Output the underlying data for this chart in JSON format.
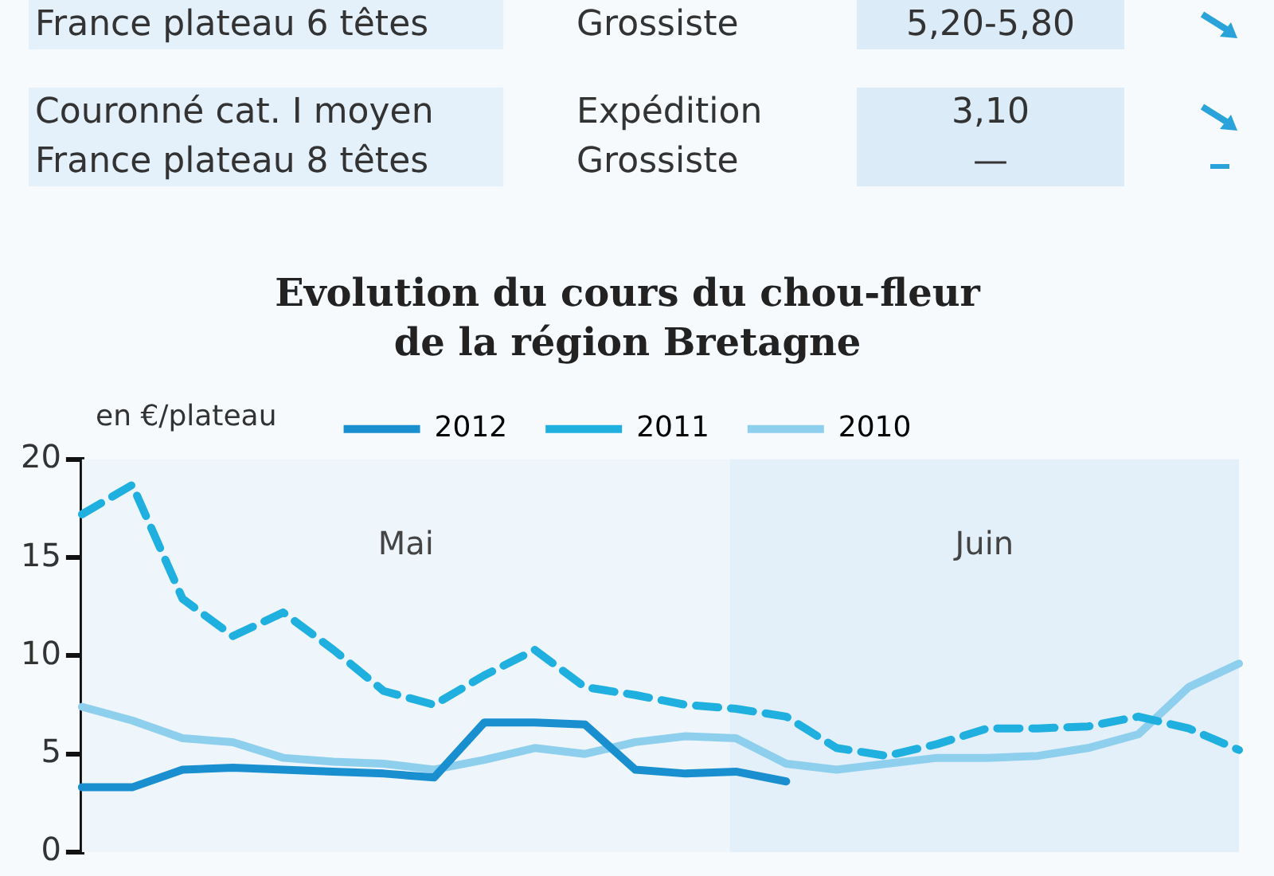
{
  "chart_data": {
    "type": "line",
    "title": "Evolution du cours du chou-fleur\nde la région Bretagne",
    "ylabel": "en €/plateau",
    "categories": [
      null,
      null,
      null,
      null,
      null,
      null,
      null,
      null,
      null,
      null,
      null,
      null,
      null,
      null,
      null,
      null,
      null,
      null,
      null,
      null,
      null,
      null,
      null,
      null
    ],
    "ylim": [
      0,
      20
    ],
    "yticks": [
      0,
      5,
      10,
      15,
      20
    ],
    "tick_labels": "y",
    "grid": false,
    "legend": "top",
    "marker": "none",
    "series": [
      {
        "name": "2012",
        "color": "#1a8fcf",
        "line_style": "solid",
        "values": [
          3.3,
          3.3,
          4.2,
          4.3,
          4.2,
          4.1,
          4.0,
          3.8,
          6.6,
          6.6,
          6.5,
          4.2,
          4.0,
          4.1,
          3.6,
          null,
          null,
          null,
          null,
          null,
          null,
          null,
          null,
          null
        ]
      },
      {
        "name": "2011",
        "color": "#1fb0e0",
        "line_style": "dashed",
        "values": [
          17.2,
          18.7,
          12.9,
          11.0,
          12.2,
          10.3,
          8.2,
          7.5,
          9.0,
          10.3,
          8.4,
          8.0,
          7.5,
          7.3,
          6.9,
          5.3,
          4.9,
          5.5,
          6.3,
          6.3,
          6.4,
          6.9,
          6.3,
          5.2
        ]
      },
      {
        "name": "2010",
        "color": "#8fcfee",
        "line_style": "solid",
        "values": [
          7.4,
          6.7,
          5.8,
          5.6,
          4.8,
          4.6,
          4.5,
          4.2,
          4.7,
          5.3,
          5.0,
          5.6,
          5.9,
          5.8,
          4.5,
          4.2,
          4.5,
          4.8,
          4.8,
          4.9,
          5.3,
          6.0,
          8.4,
          9.6
        ]
      }
    ],
    "annotations": [
      "France plateau 6 têtes",
      "Grossiste",
      "5,20-5,80",
      "Couronné cat. I moyen\nFrance plateau 8 têtes",
      "Expédition\nGrossiste",
      "3,10\n—",
      "Mai",
      "Juin"
    ]
  }
}
